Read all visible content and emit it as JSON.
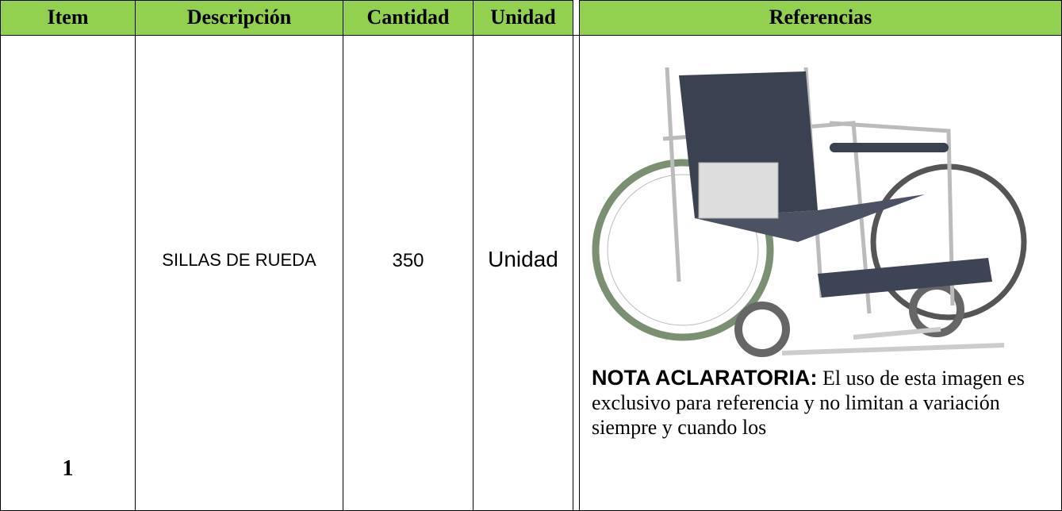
{
  "table": {
    "header": [
      "Item",
      "Descripción",
      "Cantidad",
      "Unidad",
      "Referencias"
    ],
    "rows": [
      {
        "item": "1",
        "description": "SILLAS DE RUEDA",
        "quantity": "350",
        "unit": "Unidad",
        "note_label": "NOTA ACLARATORIA:",
        "note_text": "El uso de esta imagen es exclusivo para referencia y no limitan a variación siempre y cuando los"
      }
    ]
  }
}
